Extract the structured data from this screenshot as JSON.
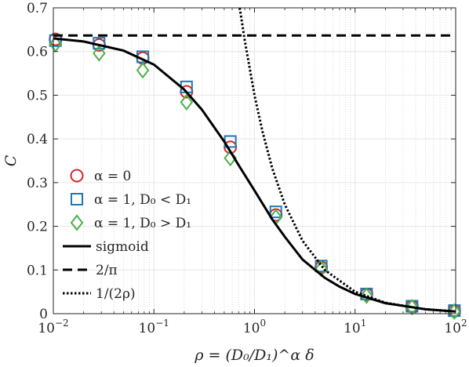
{
  "chart_data": {
    "type": "scatter",
    "xlabel": "ρ = (D₀/D₁)^α δ",
    "ylabel": "C",
    "xscale": "log",
    "xlim": [
      0.01,
      100
    ],
    "ylim": [
      0,
      0.7
    ],
    "x_ticks": [
      0.01,
      0.1,
      1,
      10,
      100
    ],
    "x_tick_labels": [
      {
        "base": "10",
        "exp": "−2"
      },
      {
        "base": "10",
        "exp": "−1"
      },
      {
        "base": "10",
        "exp": "0"
      },
      {
        "base": "10",
        "exp": "1"
      },
      {
        "base": "10",
        "exp": "2"
      }
    ],
    "y_ticks": [
      0,
      0.1,
      0.2,
      0.3,
      0.4,
      0.5,
      0.6,
      0.7
    ],
    "y_tick_labels": [
      "0",
      "0.1",
      "0.2",
      "0.3",
      "0.4",
      "0.5",
      "0.6",
      "0.7"
    ],
    "grid": true,
    "legend_position": "bottom-left",
    "series": [
      {
        "name": "α = 0",
        "marker": "circle",
        "color": "#d62728",
        "x": [
          0.0105,
          0.0285,
          0.0775,
          0.211,
          0.575,
          1.63,
          4.61,
          13.0,
          36.8,
          97.0
        ],
        "y": [
          0.628,
          0.615,
          0.585,
          0.508,
          0.381,
          0.226,
          0.106,
          0.044,
          0.016,
          0.006
        ]
      },
      {
        "name": "α = 1, D₀ < D₁",
        "marker": "square",
        "color": "#1f77b4",
        "x": [
          0.0105,
          0.0285,
          0.0775,
          0.211,
          0.575,
          1.63,
          4.61,
          13.0,
          36.8,
          97.0
        ],
        "y": [
          0.625,
          0.619,
          0.588,
          0.519,
          0.394,
          0.233,
          0.109,
          0.045,
          0.017,
          0.007
        ]
      },
      {
        "name": "α = 1, D₀ > D₁",
        "marker": "diamond",
        "color": "#4daf4a",
        "x": [
          0.0105,
          0.0285,
          0.0775,
          0.211,
          0.575,
          1.63,
          4.61,
          13.0,
          36.8,
          97.0
        ],
        "y": [
          0.617,
          0.596,
          0.557,
          0.484,
          0.356,
          0.221,
          0.103,
          0.041,
          0.015,
          0.005
        ]
      },
      {
        "name": "sigmoid",
        "line": "solid",
        "color": "#000000",
        "x": [
          0.01,
          0.02,
          0.05,
          0.1,
          0.2,
          0.3,
          0.5,
          0.7,
          1.0,
          1.5,
          2.0,
          3.0,
          5.0,
          7.0,
          10.0,
          20.0,
          50.0,
          100.0
        ],
        "y": [
          0.63,
          0.623,
          0.602,
          0.57,
          0.513,
          0.467,
          0.394,
          0.339,
          0.282,
          0.216,
          0.176,
          0.124,
          0.082,
          0.062,
          0.045,
          0.024,
          0.01,
          0.005
        ]
      },
      {
        "name": "2/π",
        "line": "dashed",
        "color": "#000000",
        "x": [
          0.01,
          100
        ],
        "y": [
          0.6366,
          0.6366
        ]
      },
      {
        "name": "1/(2ρ)",
        "line": "dotted",
        "color": "#000000",
        "x": [
          0.714,
          0.8,
          1.0,
          1.2,
          1.5,
          2.0,
          3.0,
          5.0,
          10.0,
          20.0,
          50.0,
          100.0
        ],
        "y": [
          0.7,
          0.625,
          0.5,
          0.417,
          0.333,
          0.25,
          0.167,
          0.1,
          0.05,
          0.025,
          0.01,
          0.005
        ]
      }
    ]
  }
}
